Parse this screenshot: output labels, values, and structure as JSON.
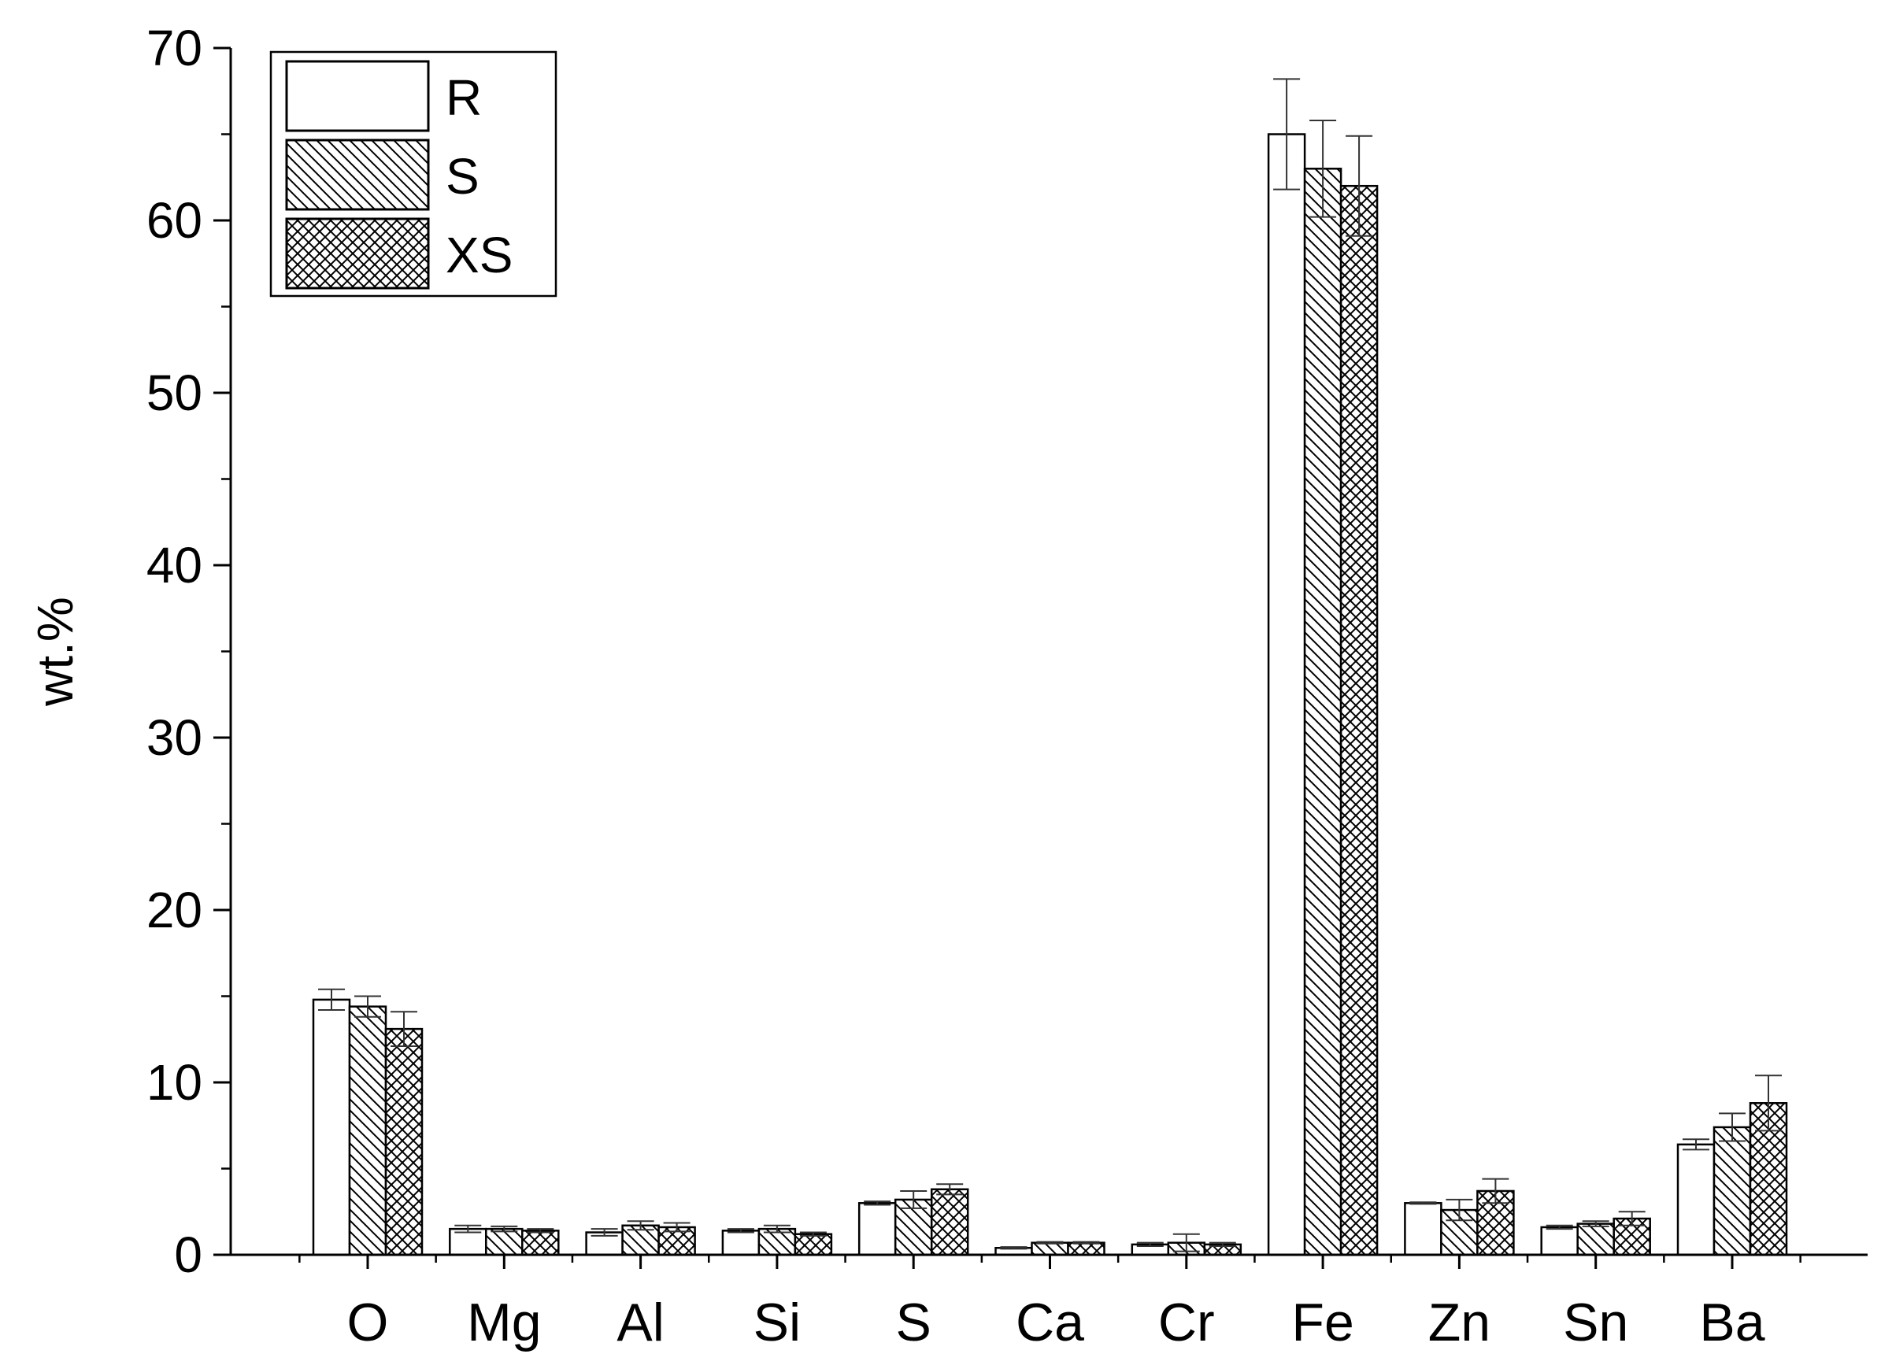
{
  "chart_data": {
    "type": "bar",
    "xlabel": "",
    "ylabel": "wt.%",
    "ylim": [
      0,
      70
    ],
    "yticks": [
      0,
      10,
      20,
      30,
      40,
      50,
      60,
      70
    ],
    "grid": false,
    "legend_position": "top-left",
    "categories": [
      "O",
      "Mg",
      "Al",
      "Si",
      "S",
      "Ca",
      "Cr",
      "Fe",
      "Zn",
      "Sn",
      "Ba"
    ],
    "series": [
      {
        "name": "R",
        "pattern": "none",
        "values": [
          14.8,
          1.5,
          1.3,
          1.4,
          3.0,
          0.4,
          0.6,
          65.0,
          3.0,
          1.6,
          6.4
        ],
        "errors": [
          0.6,
          0.2,
          0.2,
          0.1,
          0.1,
          0.05,
          0.1,
          3.2,
          0.05,
          0.1,
          0.3
        ]
      },
      {
        "name": "S",
        "pattern": "diagonal",
        "values": [
          14.4,
          1.5,
          1.7,
          1.5,
          3.2,
          0.7,
          0.7,
          63.0,
          2.6,
          1.8,
          7.4
        ],
        "errors": [
          0.6,
          0.15,
          0.25,
          0.2,
          0.5,
          0.05,
          0.5,
          2.8,
          0.6,
          0.15,
          0.8
        ]
      },
      {
        "name": "XS",
        "pattern": "crosshatch",
        "values": [
          13.1,
          1.4,
          1.6,
          1.2,
          3.8,
          0.7,
          0.6,
          62.0,
          3.7,
          2.1,
          8.8
        ],
        "errors": [
          1.0,
          0.1,
          0.25,
          0.1,
          0.3,
          0.05,
          0.1,
          2.9,
          0.7,
          0.4,
          1.6
        ]
      }
    ]
  }
}
